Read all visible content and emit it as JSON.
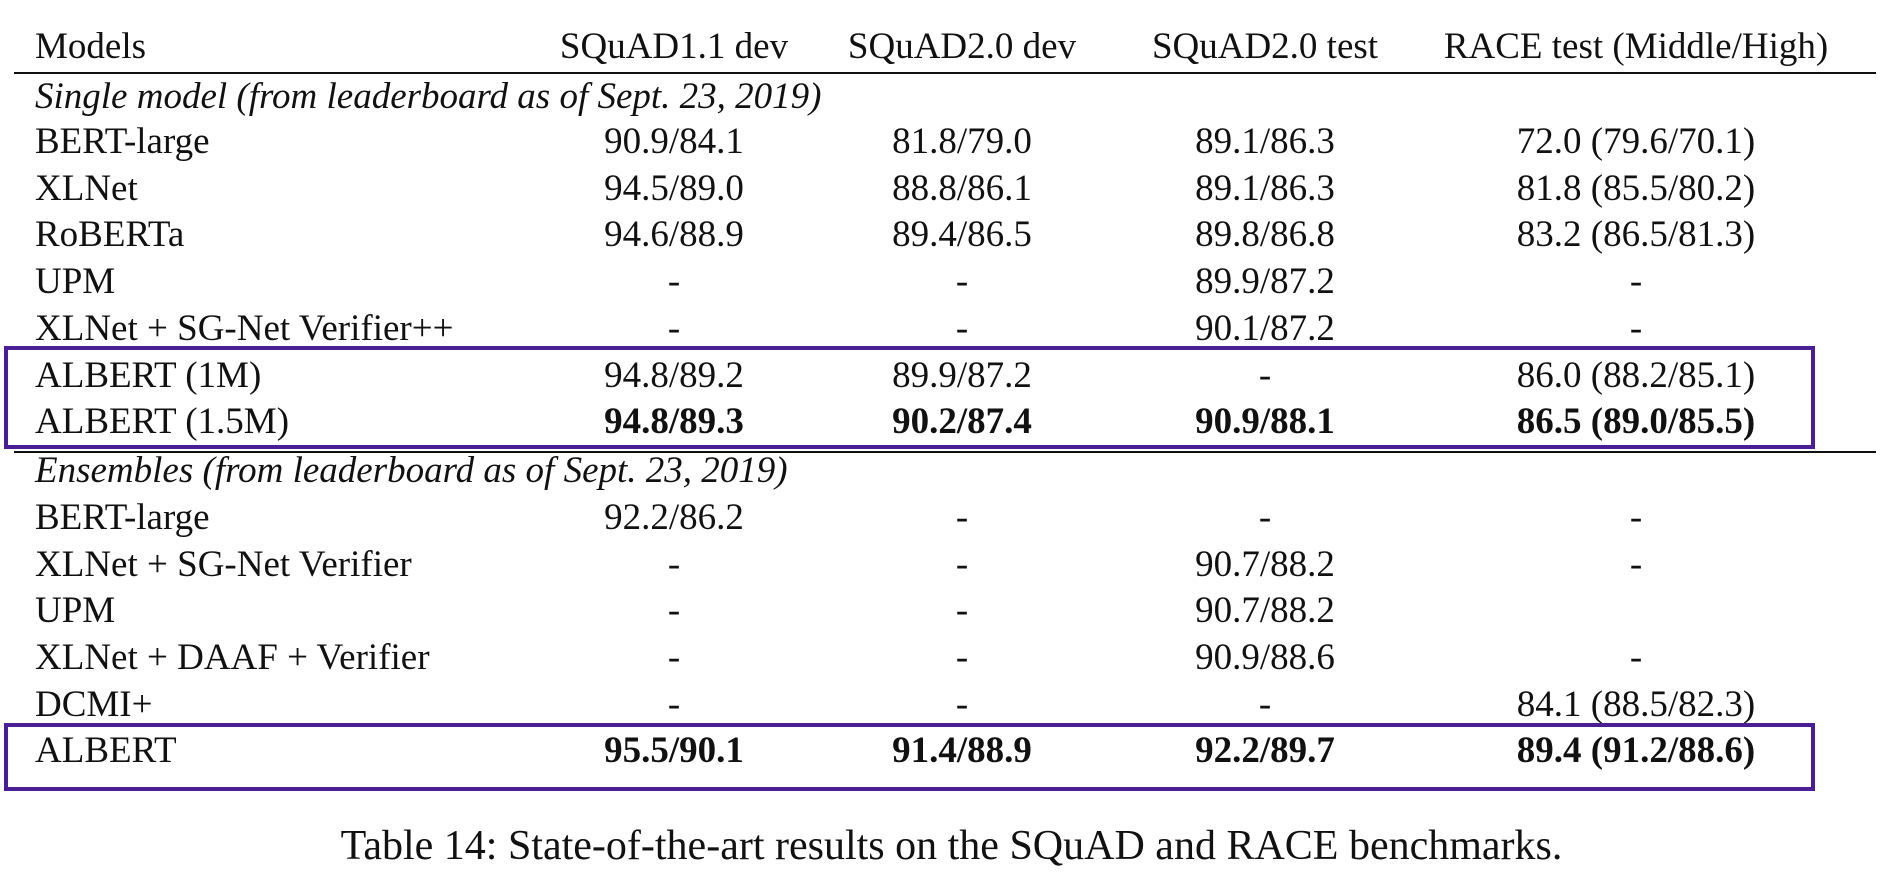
{
  "table": {
    "headers": [
      "Models",
      "SQuAD1.1 dev",
      "SQuAD2.0 dev",
      "SQuAD2.0 test",
      "RACE test (Middle/High)"
    ],
    "section_single": "Single model (from leaderboard as of Sept. 23, 2019)",
    "single_rows": [
      [
        "BERT-large",
        "90.9/84.1",
        "81.8/79.0",
        "89.1/86.3",
        "72.0 (79.6/70.1)"
      ],
      [
        "XLNet",
        "94.5/89.0",
        "88.8/86.1",
        "89.1/86.3",
        "81.8 (85.5/80.2)"
      ],
      [
        "RoBERTa",
        "94.6/88.9",
        "89.4/86.5",
        "89.8/86.8",
        "83.2 (86.5/81.3)"
      ],
      [
        "UPM",
        "-",
        "-",
        "89.9/87.2",
        "-"
      ],
      [
        "XLNet + SG-Net Verifier++",
        "-",
        "-",
        "90.1/87.2",
        "-"
      ],
      [
        "ALBERT (1M)",
        "94.8/89.2",
        "89.9/87.2",
        "-",
        "86.0 (88.2/85.1)"
      ],
      [
        "ALBERT (1.5M)",
        "94.8/89.3",
        "90.2/87.4",
        "90.9/88.1",
        "86.5 (89.0/85.5)"
      ]
    ],
    "section_ensembles": "Ensembles (from leaderboard as of Sept. 23, 2019)",
    "ensemble_rows": [
      [
        "BERT-large",
        "92.2/86.2",
        "-",
        "-",
        "-"
      ],
      [
        "XLNet + SG-Net Verifier",
        "-",
        "-",
        "90.7/88.2",
        "-"
      ],
      [
        "UPM",
        "-",
        "-",
        "90.7/88.2",
        ""
      ],
      [
        "XLNet + DAAF + Verifier",
        "-",
        "-",
        "90.9/88.6",
        "-"
      ],
      [
        "DCMI+",
        "-",
        "-",
        "-",
        "84.1 (88.5/82.3)"
      ],
      [
        "ALBERT",
        "95.5/90.1",
        "91.4/88.9",
        "92.2/89.7",
        "89.4 (91.2/88.6)"
      ]
    ]
  },
  "highlight_color": "#4a1f96",
  "caption": "Table 14: State-of-the-art results on the SQuAD and RACE benchmarks."
}
